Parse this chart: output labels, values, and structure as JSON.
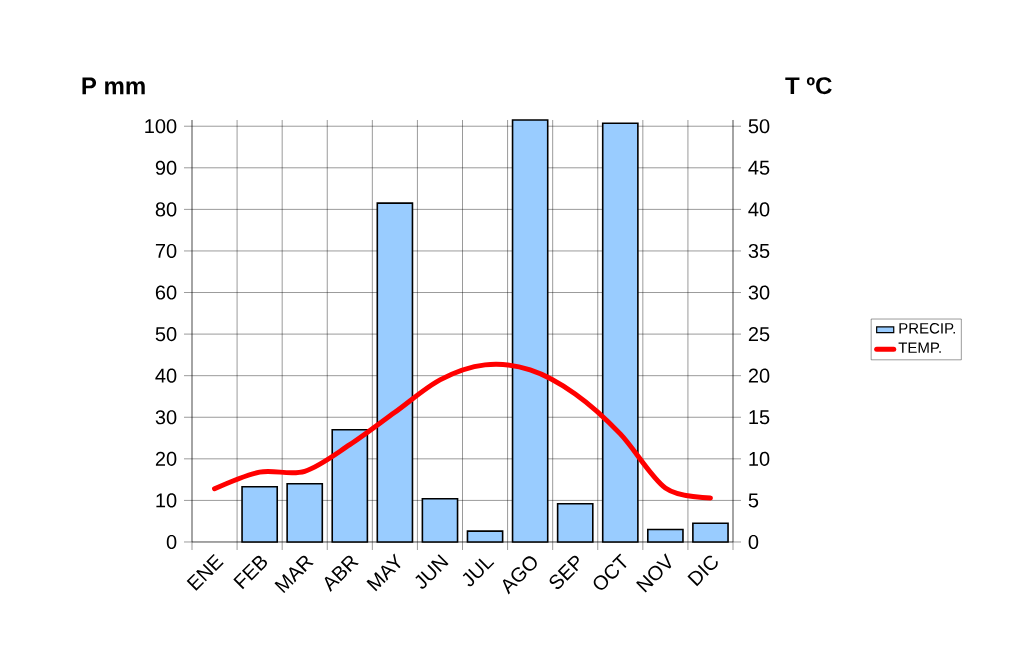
{
  "chart_data": {
    "type": "bar",
    "ylabel": "P mm",
    "y2label": "T ºC",
    "categories": [
      "ENE",
      "FEB",
      "MAR",
      "ABR",
      "MAY",
      "JUN",
      "JUL",
      "AGO",
      "SEP",
      "OCT",
      "NOV",
      "DIC"
    ],
    "series": [
      {
        "name": "PRECIP.",
        "color": "#99ccff",
        "values": [
          null,
          13.3,
          14,
          27,
          81.5,
          10.4,
          2.6,
          101.5,
          9.2,
          100.7,
          3,
          4.5
        ]
      },
      {
        "name": "TEMP.",
        "type": "line",
        "axis": "y2",
        "color": "#ff0000",
        "values": [
          6.4,
          8.4,
          8.5,
          11.7,
          15.6,
          19.5,
          21.3,
          20.7,
          17.8,
          13,
          6.5,
          5.3
        ]
      }
    ],
    "ylim": [
      0,
      101.5
    ],
    "yticks": [
      0,
      10,
      20,
      30,
      40,
      50,
      60,
      70,
      80,
      90,
      100
    ],
    "y2lim": [
      0,
      50.75
    ],
    "y2ticks": [
      0,
      5,
      10,
      15,
      20,
      25,
      30,
      35,
      40,
      45,
      50
    ],
    "grid": true,
    "legend": "right"
  }
}
